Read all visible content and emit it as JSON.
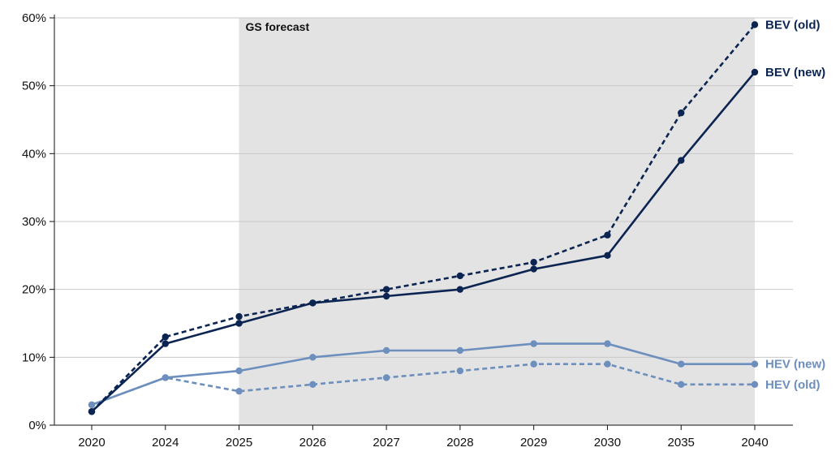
{
  "chart_data": {
    "type": "line",
    "title": "",
    "xlabel": "",
    "ylabel": "",
    "categories": [
      "2020",
      "2024",
      "2025",
      "2026",
      "2027",
      "2028",
      "2029",
      "2030",
      "2035",
      "2040"
    ],
    "y_ticks": [
      "0%",
      "10%",
      "20%",
      "30%",
      "40%",
      "50%",
      "60%"
    ],
    "ylim": [
      0,
      60
    ],
    "grid": "horizontal",
    "shaded_region": {
      "label": "GS forecast",
      "from": "2025",
      "to": "2040",
      "color": "#e3e3e3"
    },
    "series": [
      {
        "name": "BEV (old)",
        "values": [
          2,
          13,
          16,
          18,
          20,
          22,
          24,
          28,
          46,
          59
        ],
        "color": "#0b2451",
        "dashed": true
      },
      {
        "name": "BEV (new)",
        "values": [
          2,
          12,
          15,
          18,
          19,
          20,
          23,
          25,
          39,
          52
        ],
        "color": "#0b2451",
        "dashed": false
      },
      {
        "name": "HEV (new)",
        "values": [
          3,
          7,
          8,
          10,
          11,
          11,
          12,
          12,
          9,
          9
        ],
        "color": "#6d8fbe",
        "dashed": false
      },
      {
        "name": "HEV (old)",
        "values": [
          3,
          7,
          5,
          6,
          7,
          8,
          9,
          9,
          6,
          6
        ],
        "color": "#6d8fbe",
        "dashed": true
      }
    ]
  }
}
